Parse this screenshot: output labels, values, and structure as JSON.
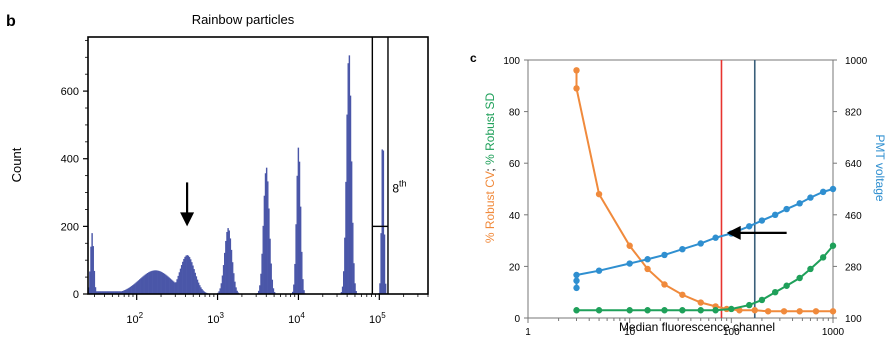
{
  "panel_b_label": "b",
  "panel_c_label": "c",
  "chart_data": [
    {
      "type": "histogram",
      "panel": "b",
      "title": "Rainbow particles",
      "ylabel": "Count",
      "xlabel": "",
      "x_scale": "log",
      "xlim": [
        25,
        400000
      ],
      "ylim": [
        0,
        760
      ],
      "yticks": [
        0,
        200,
        400,
        600
      ],
      "ytick_labels": [
        "0",
        "200",
        "400",
        "600"
      ],
      "xticks": [
        {
          "value": 100,
          "base": "10",
          "exp": "2"
        },
        {
          "value": 1000,
          "base": "10",
          "exp": "3"
        },
        {
          "value": 10000,
          "base": "10",
          "exp": "4"
        },
        {
          "value": 100000,
          "base": "10",
          "exp": "5"
        }
      ],
      "series_color": "#4a56a8",
      "peaks": [
        {
          "center": 28,
          "height": 180,
          "width": 0.02
        },
        {
          "center": 170,
          "height": 70,
          "width": 0.2
        },
        {
          "center": 420,
          "height": 115,
          "width": 0.09
        },
        {
          "center": 1350,
          "height": 195,
          "width": 0.045
        },
        {
          "center": 4000,
          "height": 375,
          "width": 0.035
        },
        {
          "center": 10000,
          "height": 435,
          "width": 0.025
        },
        {
          "center": 42000,
          "height": 715,
          "width": 0.03
        },
        {
          "center": 110000,
          "height": 475,
          "width": 0.015
        }
      ],
      "baseline_range": [
        25,
        400
      ],
      "baseline_level": 8,
      "gate": {
        "x_left": 82000,
        "x_right": 128000,
        "y_mid": 200
      },
      "annotation": {
        "text": "8",
        "superscript": "th",
        "x": 145000,
        "y": 400
      },
      "arrow": {
        "x": 420,
        "y_from": 330,
        "y_to": 200,
        "color": "#000000"
      }
    },
    {
      "type": "line",
      "panel": "c",
      "xlabel": "Median fluorescence channel",
      "ylabel_left_parts": [
        {
          "text": "% Robust CV",
          "color": "#f08a3c"
        },
        {
          "text": "; ",
          "color": "#000000"
        },
        {
          "text": "% Robust SD",
          "color": "#1fa05a"
        }
      ],
      "ylabel_right": "PMT voltage",
      "ylabel_right_color": "#2f8fd0",
      "x_scale": "log",
      "xlim": [
        1,
        1000
      ],
      "ylim_left": [
        0,
        100
      ],
      "ylim_right": [
        100,
        1000
      ],
      "xticks": [
        1,
        10,
        100,
        1000
      ],
      "xtick_labels": [
        "1",
        "10",
        "100",
        "1000"
      ],
      "yticks_left": [
        0,
        20,
        40,
        60,
        80,
        100
      ],
      "ytick_labels_left": [
        "0",
        "20",
        "40",
        "60",
        "80",
        "100"
      ],
      "yticks_right": [
        100,
        280,
        460,
        640,
        820,
        1000
      ],
      "ytick_labels_right": [
        "100",
        "280",
        "460",
        "640",
        "820",
        "1000"
      ],
      "vlines": [
        {
          "x": 80,
          "color": "#e8332f"
        },
        {
          "x": 170,
          "color": "#3a5f7a"
        }
      ],
      "arrow": {
        "x_from": 350,
        "x_to": 90,
        "y": 33,
        "color": "#000000"
      },
      "series": [
        {
          "axis": "left",
          "color": "#f08a3c",
          "x": [
            3,
            3,
            5,
            10,
            15,
            22,
            33,
            50,
            70,
            90,
            120,
            170,
            230,
            330,
            470,
            680,
            1000
          ],
          "y": [
            96,
            89,
            48,
            28,
            19,
            13,
            9,
            6,
            4.5,
            3.5,
            3,
            3,
            2.6,
            2.6,
            2.6,
            2.6,
            2.6
          ]
        },
        {
          "axis": "left",
          "color": "#1fa05a",
          "x": [
            3,
            5,
            10,
            15,
            22,
            33,
            50,
            70,
            100,
            150,
            200,
            270,
            350,
            470,
            600,
            800,
            1000
          ],
          "y": [
            3,
            3,
            3,
            3,
            3,
            3,
            3,
            3,
            3.5,
            5,
            7,
            10,
            12.5,
            15.5,
            19,
            23.5,
            28
          ]
        },
        {
          "axis": "right",
          "color": "#2f8fd0",
          "x": [
            3,
            3,
            3,
            5,
            10,
            15,
            22,
            33,
            50,
            70,
            100,
            150,
            200,
            270,
            350,
            470,
            600,
            800,
            1000
          ],
          "y": [
            205,
            230,
            250,
            265,
            290,
            305,
            320,
            340,
            360,
            380,
            395,
            420,
            440,
            460,
            480,
            500,
            520,
            540,
            550
          ]
        }
      ]
    }
  ]
}
